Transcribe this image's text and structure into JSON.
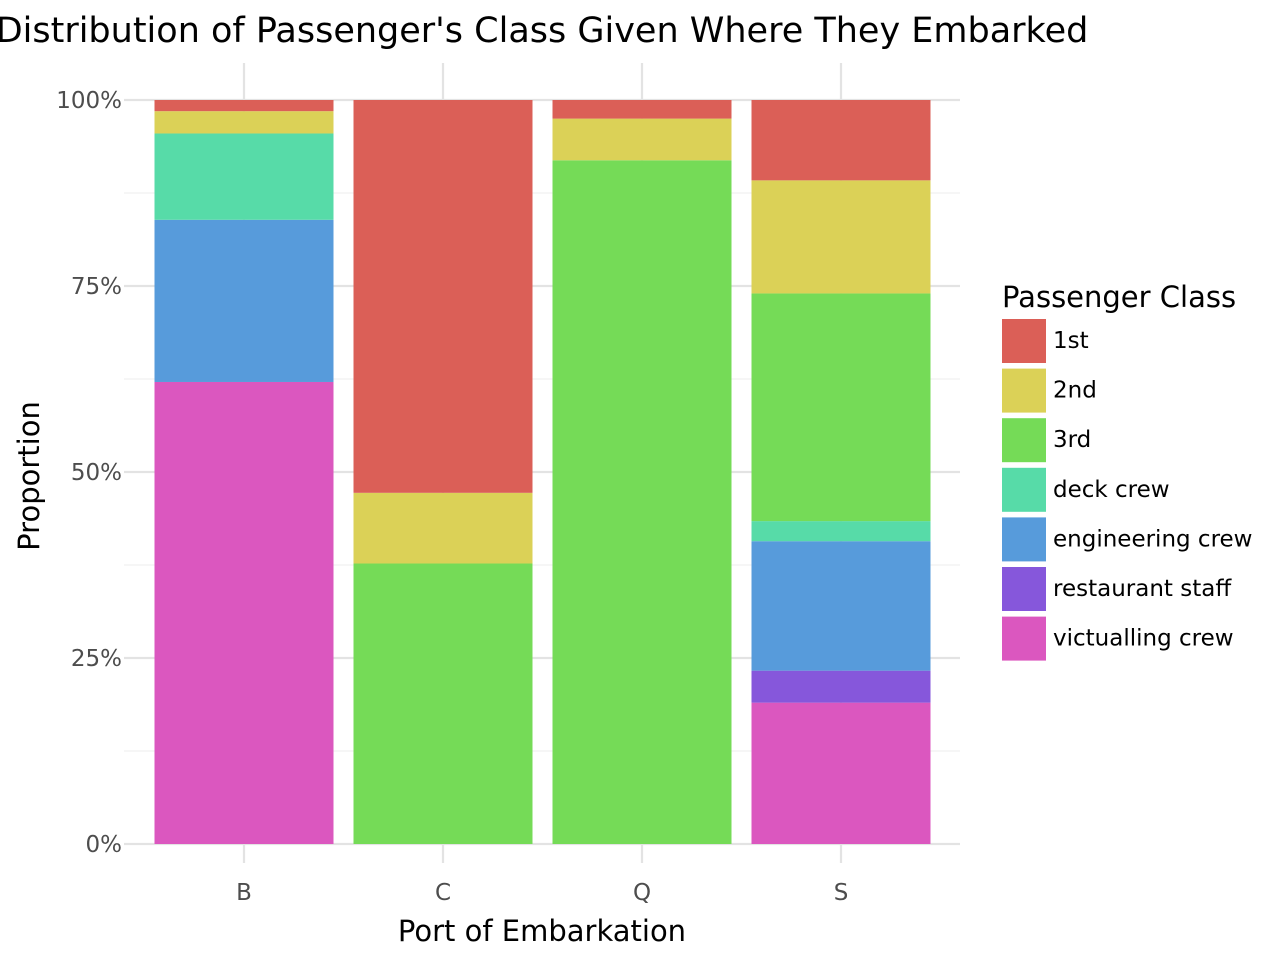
{
  "chart_data": {
    "type": "bar",
    "stacked": true,
    "normalized": true,
    "title": "Distribution of Passenger's Class Given Where They Embarked",
    "xlabel": "Port of Embarkation",
    "ylabel": "Proportion",
    "ylim": [
      0,
      1
    ],
    "y_ticks": [
      {
        "value": 0,
        "label": "0%"
      },
      {
        "value": 0.25,
        "label": "25%"
      },
      {
        "value": 0.5,
        "label": "50%"
      },
      {
        "value": 0.75,
        "label": "75%"
      },
      {
        "value": 1,
        "label": "100%"
      }
    ],
    "categories": [
      "B",
      "C",
      "Q",
      "S"
    ],
    "grid": true,
    "legend": {
      "title": "Passenger Class",
      "position": "right"
    },
    "series": [
      {
        "name": "1st",
        "color": "#DB5F57",
        "values": [
          0.015,
          0.528,
          0.025,
          0.108
        ]
      },
      {
        "name": "2nd",
        "color": "#DBD157",
        "values": [
          0.03,
          0.095,
          0.056,
          0.152
        ]
      },
      {
        "name": "3rd",
        "color": "#75DB57",
        "values": [
          0.0,
          0.377,
          0.919,
          0.306
        ]
      },
      {
        "name": "deck crew",
        "color": "#57DBA8",
        "values": [
          0.116,
          0.0,
          0.0,
          0.027
        ]
      },
      {
        "name": "engineering crew",
        "color": "#579BDB",
        "values": [
          0.218,
          0.0,
          0.0,
          0.174
        ]
      },
      {
        "name": "restaurant staff",
        "color": "#8657DB",
        "values": [
          0.0,
          0.0,
          0.0,
          0.043
        ]
      },
      {
        "name": "victualling crew",
        "color": "#DB57BF",
        "values": [
          0.621,
          0.0,
          0.0,
          0.19
        ]
      }
    ]
  }
}
